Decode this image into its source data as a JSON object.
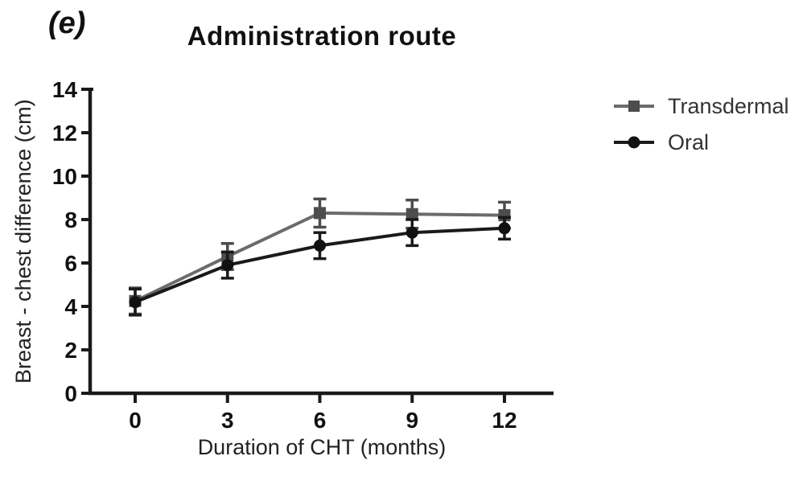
{
  "figure": {
    "panel_label": "(e)",
    "background_color": "#ffffff",
    "axis_color": "#1a1a1a"
  },
  "chart_data": {
    "type": "line",
    "title": "Administration route",
    "xlabel": "Duration of CHT (months)",
    "ylabel": "Breast - chest difference (cm)",
    "x": [
      0,
      3,
      6,
      9,
      12
    ],
    "xticks": [
      0,
      3,
      6,
      9,
      12
    ],
    "yticks": [
      0,
      2,
      4,
      6,
      8,
      10,
      12,
      14
    ],
    "xlim": [
      -1.5,
      13.6
    ],
    "ylim": [
      0,
      14
    ],
    "grid": false,
    "error_bars": true,
    "legend_position": "right-outside",
    "series": [
      {
        "name": "Transdermal",
        "marker": "square",
        "color": "#6b6b6b",
        "marker_color": "#4d4d4d",
        "error_color": "#4d4d4d",
        "values": [
          4.25,
          6.3,
          8.3,
          8.25,
          8.2
        ],
        "errors": [
          0.6,
          0.6,
          0.65,
          0.65,
          0.6
        ]
      },
      {
        "name": "Oral",
        "marker": "circle",
        "color": "#1a1a1a",
        "marker_color": "#111111",
        "error_color": "#1a1a1a",
        "values": [
          4.2,
          5.9,
          6.8,
          7.4,
          7.6
        ],
        "errors": [
          0.6,
          0.6,
          0.6,
          0.6,
          0.5
        ]
      }
    ]
  }
}
